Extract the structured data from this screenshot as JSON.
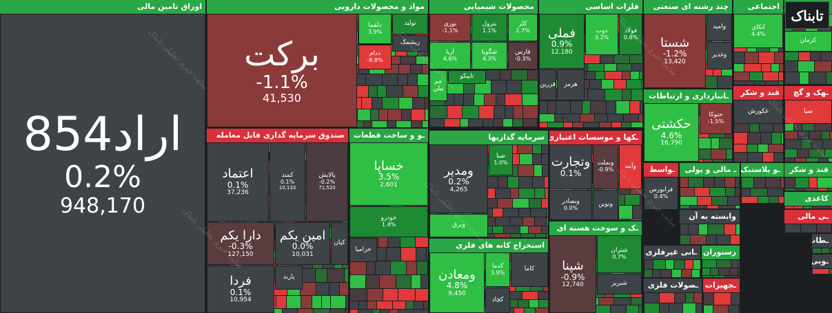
{
  "logo": "تابناک",
  "watermark": "سایت خبری تحلیلی تابناک",
  "sectors": [
    {
      "title": "اوراق تامین مالی",
      "color": "#2aa845",
      "tiles": [
        {
          "name": "اراد854",
          "change": "0.2%",
          "value": "948,170",
          "color": "#3d4347"
        }
      ]
    },
    {
      "title": "مواد و محصولات دارویی",
      "color": "#2aa845",
      "tiles": [
        {
          "name": "برکت",
          "change": "-1.1%",
          "value": "41,530",
          "color": "#8b3a3a"
        },
        {
          "name": "دلقما",
          "change": "3.9%",
          "color": "#2fbf45"
        },
        {
          "name": "تولید",
          "color": "#1f8a34"
        },
        {
          "name": "ریشمک",
          "color": "#3d4347"
        },
        {
          "name": "ددام",
          "change": "-8.8%",
          "color": "#e03a3a"
        }
      ]
    },
    {
      "title": "محصولات شیمیایی",
      "color": "#2aa845",
      "tiles": [
        {
          "name": "نوری",
          "change": "-1.1%",
          "color": "#8b3a3a"
        },
        {
          "name": "بترول",
          "change": "1.1%",
          "color": "#1f8a34"
        },
        {
          "name": "کلر",
          "change": "2.7%",
          "color": "#2fbf45"
        },
        {
          "name": "آریا",
          "change": "4.6%",
          "color": "#2fbf45"
        },
        {
          "name": "شگویا",
          "change": "4.3%",
          "color": "#2fbf45"
        },
        {
          "name": "فارس",
          "change": "-0.3%",
          "color": "#5a3c3e"
        },
        {
          "name": "تاپیکو",
          "color": "#1f8a34"
        },
        {
          "name": "جم پیلن",
          "color": "#2fbf45"
        }
      ]
    },
    {
      "title": "فلزات اساسی",
      "color": "#2aa845",
      "tiles": [
        {
          "name": "فملی",
          "change": "0.9%",
          "value": "12,180",
          "color": "#1f8a34"
        },
        {
          "name": "ذوب",
          "change": "3.2%",
          "color": "#2fbf45"
        },
        {
          "name": "فولاد",
          "change": "0.8%",
          "color": "#1f8a34"
        },
        {
          "name": "هرمز",
          "color": "#3d4347"
        },
        {
          "name": "فزرین",
          "color": "#3d4347"
        }
      ]
    },
    {
      "title": "چند رشته ای صنعتی",
      "color": "#2aa845",
      "tiles": [
        {
          "name": "شستا",
          "change": "-1.2%",
          "value": "13,420",
          "color": "#8b3a3a"
        },
        {
          "name": "وامید",
          "color": "#3d4347"
        },
        {
          "name": "وغدیر",
          "color": "#3d4347"
        }
      ]
    },
    {
      "title": "اجتماعی",
      "color": "#2aa845",
      "tiles": [
        {
          "name": "اتکای",
          "change": "4.4%",
          "color": "#2fbf45"
        }
      ]
    },
    {
      "title": "ـتغلات",
      "color": "#2aa845",
      "tiles": [
        {
          "name": "کرمان",
          "color": "#2fbf45"
        }
      ]
    },
    {
      "title": "صندوق سرمایه گذاری قابل معامله",
      "color": "#d9303a",
      "tiles": [
        {
          "name": "اعتماد",
          "change": "0.1%",
          "value": "37,236",
          "color": "#3d4347"
        },
        {
          "name": "کمند",
          "change": "0.1%",
          "value": "10,133",
          "color": "#3d4347"
        },
        {
          "name": "پالایش",
          "change": "-0.2%",
          "value": "71,520",
          "color": "#4a3c40"
        },
        {
          "name": "دارا یکم",
          "change": "-0.3%",
          "value": "127,150",
          "color": "#5a3c3e"
        },
        {
          "name": "امین یکم",
          "change": "0.0%",
          "value": "10,031",
          "color": "#3d4347"
        },
        {
          "name": "کیان",
          "color": "#3d4347"
        },
        {
          "name": "فردا",
          "change": "0.1%",
          "value": "10,954",
          "color": "#3d4347"
        },
        {
          "name": "پارند",
          "color": "#3d4347"
        }
      ]
    },
    {
      "title": "ـو و ساخت قطعات",
      "color": "#2aa845",
      "tiles": [
        {
          "name": "خساپا",
          "change": "3.5%",
          "value": "2,601",
          "color": "#2fbf45"
        },
        {
          "name": "خودرو",
          "change": "1.4%",
          "color": "#1f8a34"
        },
        {
          "name": "خزامیا",
          "color": "#3d4347"
        }
      ]
    },
    {
      "title": "سرمایه گذاریها",
      "color": "#2aa845",
      "tiles": [
        {
          "name": "ومدیر",
          "change": "0.2%",
          "value": "4,265",
          "color": "#3d4347"
        },
        {
          "name": "صبا",
          "change": "1.0%",
          "color": "#1f8a34"
        },
        {
          "name": "وبرق",
          "color": "#2fbf45"
        }
      ]
    },
    {
      "title": "استخراج کانه های فلزی",
      "color": "#2aa845",
      "tiles": [
        {
          "name": "ومعادن",
          "change": "4.8%",
          "value": "9,450",
          "color": "#2fbf45"
        },
        {
          "name": "کدما",
          "change": "3.9%",
          "color": "#2fbf45"
        },
        {
          "name": "کاما",
          "color": "#3d4347"
        },
        {
          "name": "کچاد",
          "color": "#3d4347"
        }
      ]
    },
    {
      "title": "ـکها و موسسات اعتباری",
      "color": "#d9303a",
      "tiles": [
        {
          "name": "وتجارت",
          "change": "0.1%",
          "color": "#3d4347"
        },
        {
          "name": "وبملت",
          "change": "-0.9%",
          "color": "#5a3c3e"
        },
        {
          "name": "وآیند",
          "color": "#e03a3a"
        },
        {
          "name": "وبصادر",
          "change": "0.0%",
          "color": "#3d4347"
        },
        {
          "name": "ونوین",
          "color": "#3d4347"
        }
      ]
    },
    {
      "title": "ـک و سوخت هسته ای",
      "color": "#2aa845",
      "tiles": [
        {
          "name": "شپنا",
          "change": "-0.9%",
          "value": "12,740",
          "color": "#5a3c3e"
        },
        {
          "name": "شتران",
          "change": "0.7%",
          "color": "#1f8a34"
        },
        {
          "name": "شبریز",
          "color": "#3d4347"
        }
      ]
    },
    {
      "title": "ـانبارداری و ارتباطات",
      "color": "#2aa845",
      "tiles": [
        {
          "name": "حکشتی",
          "change": "4.6%",
          "value": "16,790",
          "color": "#2fbf45"
        },
        {
          "name": "حتوکا",
          "change": "-1.5%",
          "color": "#8b3a3a"
        }
      ]
    },
    {
      "title": "قند و شکر",
      "color": "#d9303a",
      "tiles": [
        {
          "name": "غکورش",
          "color": "#3d4347"
        }
      ]
    },
    {
      "title": "ـهک و گچ",
      "color": "#d9303a",
      "tiles": [
        {
          "name": "سپا",
          "color": "#e03a3a"
        }
      ]
    },
    {
      "title": "ـواسط",
      "color": "#d9303a",
      "tiles": [
        {
          "name": "فرابورس",
          "change": "0.4%",
          "color": "#3d4347"
        }
      ]
    },
    {
      "title": "ـ مالی و پولی",
      "color": "#2aa845",
      "tiles": []
    },
    {
      "title": "وابسته به آن",
      "color": "#3d4347",
      "tiles": []
    },
    {
      "title": "ـو پلاستیک",
      "color": "#2aa845",
      "tiles": []
    },
    {
      "title": "قند و شکر",
      "color": "#2aa845",
      "tiles": []
    },
    {
      "title": "کاغذی",
      "color": "#2aa845",
      "tiles": []
    },
    {
      "title": "ـی مالی",
      "color": "#d9303a",
      "tiles": []
    },
    {
      "title": "ـانی غیرفلزی",
      "color": "#3d4347",
      "tiles": []
    },
    {
      "title": "رستوران",
      "color": "#2aa845",
      "tiles": []
    },
    {
      "title": "ـصولات فلزی",
      "color": "#3d4347",
      "tiles": []
    },
    {
      "title": "ـجهیزات",
      "color": "#d9303a",
      "tiles": []
    },
    {
      "title": "ـطات",
      "color": "#3d4347",
      "tiles": []
    },
    {
      "title": "ـوبی",
      "color": "#3d4347",
      "tiles": []
    }
  ]
}
